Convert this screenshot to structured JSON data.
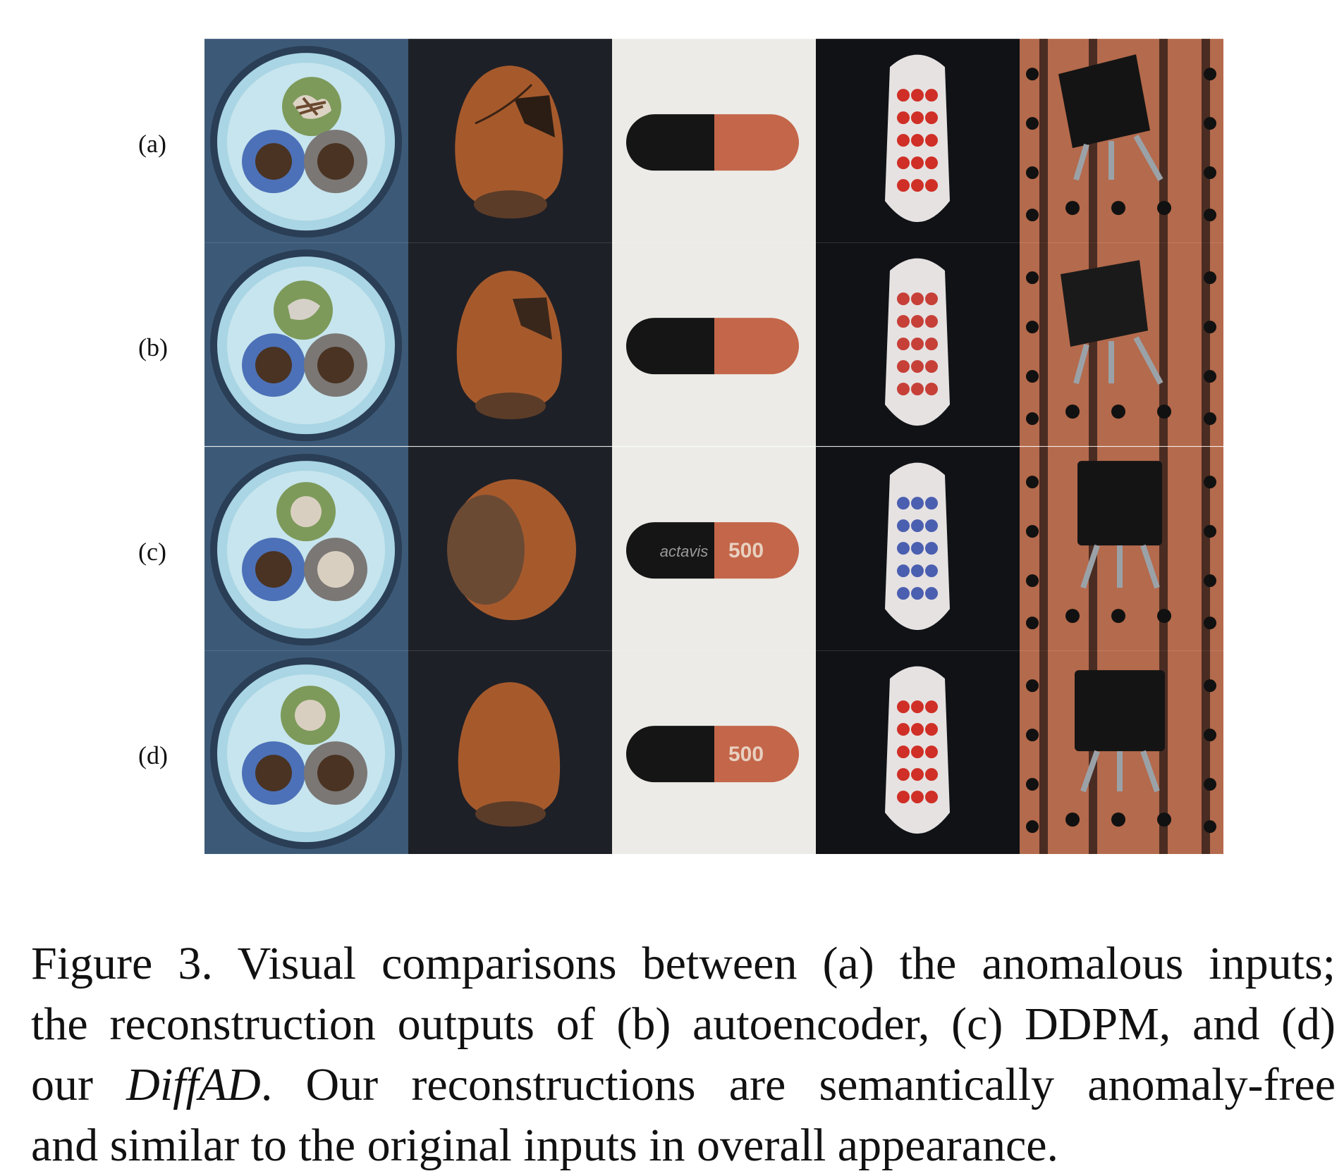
{
  "figure": {
    "row_labels": [
      "(a)",
      "(b)",
      "(c)",
      "(d)"
    ],
    "column_objects": [
      "cable",
      "hazelnut",
      "capsule",
      "toothbrush",
      "transistor"
    ],
    "capsule_print": {
      "row_c_left": "actavis",
      "row_c_right": "500",
      "row_d_right": "500"
    },
    "colors": {
      "cable_bg": "#3c5a78",
      "hazelnut_bg": "#1e2027",
      "capsule_bg": "#ecebe7",
      "toothbrush_bg": "#101216",
      "transistor_bg": "#b46a4c"
    }
  },
  "caption": {
    "line1": "Figure 3. Visual comparisons between (a) the anomalous inputs;",
    "line2": "the reconstruction outputs of (b) autoencoder, (c) DDPM, and (d)",
    "line3_prefix": "our ",
    "line3_italic": "DiffAD",
    "line3_suffix": ". Our reconstructions are semantically anomaly-free",
    "line4": "and similar to the original inputs in overall appearance."
  }
}
